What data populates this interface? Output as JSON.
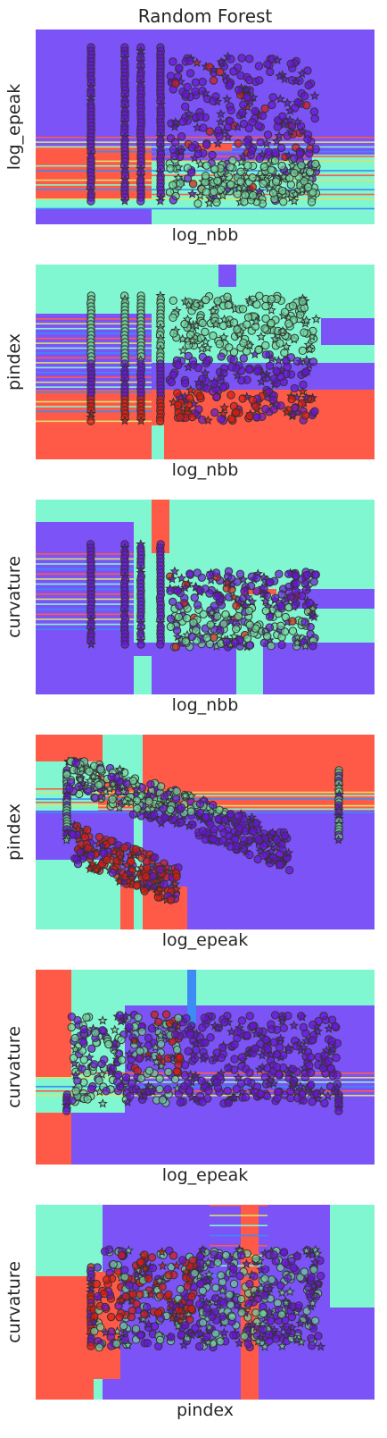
{
  "title": "Random Forest",
  "colors": {
    "class_purple": "#7b53f7",
    "class_cyan": "#80f7d1",
    "class_red": "#ff5a48",
    "class_yellow": "#d9e36a",
    "class_blue": "#3d8bf5",
    "point_purple": "#6a12d6",
    "point_green": "#6fd39a",
    "point_red": "#d81a10",
    "edge": "#333333"
  },
  "chart_data": [
    {
      "type": "scatter",
      "title": "Random Forest",
      "xlabel": "log_nbb",
      "ylabel": "log_epeak",
      "grid": false,
      "ticks": false
    },
    {
      "type": "scatter",
      "title": "",
      "xlabel": "log_nbb",
      "ylabel": "pindex",
      "grid": false,
      "ticks": false
    },
    {
      "type": "scatter",
      "title": "",
      "xlabel": "log_nbb",
      "ylabel": "curvature",
      "grid": false,
      "ticks": false
    },
    {
      "type": "scatter",
      "title": "",
      "xlabel": "log_epeak",
      "ylabel": "pindex",
      "grid": false,
      "ticks": false
    },
    {
      "type": "scatter",
      "title": "",
      "xlabel": "log_epeak",
      "ylabel": "curvature",
      "grid": false,
      "ticks": false
    },
    {
      "type": "scatter",
      "title": "",
      "xlabel": "pindex",
      "ylabel": "curvature",
      "grid": false,
      "ticks": false
    }
  ]
}
